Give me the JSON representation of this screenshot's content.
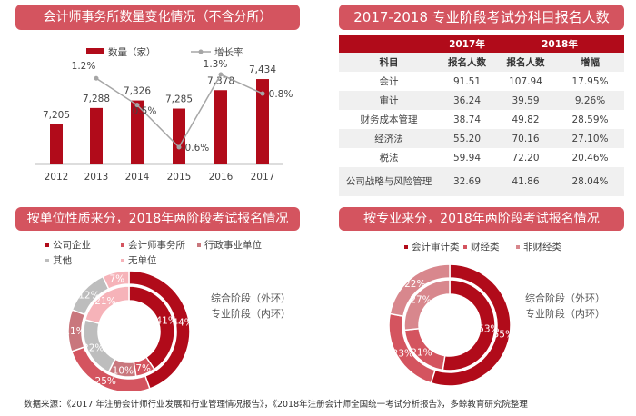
{
  "chart_data": [
    {
      "type": "bar",
      "title": "会计师事务所数量变化情况（不含分所）",
      "categories": [
        "2012",
        "2013",
        "2014",
        "2015",
        "2016",
        "2017"
      ],
      "series": [
        {
          "name": "数量（家）",
          "type": "bar",
          "values": [
            7205,
            7288,
            7326,
            7285,
            7378,
            7434
          ],
          "labels": [
            "7,205",
            "7,288",
            "7,326",
            "7,285",
            "7,378",
            "7,434"
          ],
          "color": "#b10b1a"
        },
        {
          "name": "增长率",
          "type": "line",
          "values": [
            null,
            1.2,
            0.5,
            -0.6,
            1.3,
            0.8
          ],
          "labels": [
            "",
            "1.2%",
            "0.5%",
            "-0.6%",
            "1.3%",
            "0.8%"
          ],
          "color": "#a6a6a6"
        }
      ],
      "legend": "top"
    },
    {
      "type": "table",
      "title": "2017-2018 专业阶段考试分科目报名人数",
      "group_headers": [
        "",
        "2017年",
        "2018年"
      ],
      "columns": [
        "科目",
        "报名人数",
        "报名人数",
        "增幅"
      ],
      "rows": [
        [
          "会计",
          "91.51",
          "107.94",
          "17.95%"
        ],
        [
          "审计",
          "36.24",
          "39.59",
          "9.26%"
        ],
        [
          "财务成本管理",
          "38.74",
          "49.82",
          "28.59%"
        ],
        [
          "经济法",
          "55.20",
          "70.16",
          "27.10%"
        ],
        [
          "税法",
          "59.94",
          "72.20",
          "20.46%"
        ],
        [
          "公司战略与风险管理",
          "32.69",
          "41.86",
          "28.04%"
        ]
      ]
    },
    {
      "type": "pie",
      "title": "按单位性质来分，2018年两阶段考试报名情况",
      "categories": [
        "公司企业",
        "会计师事务所",
        "行政事业单位",
        "其他",
        "无单位"
      ],
      "colors": [
        "#b10b1a",
        "#d4545f",
        "#c9777d",
        "#bdbdbd",
        "#f6b3b9"
      ],
      "outer": {
        "name": "综合阶段（外环）",
        "values": [
          44,
          25,
          11,
          12,
          7
        ]
      },
      "inner": {
        "name": "专业阶段（内环）",
        "values": [
          41,
          7,
          10,
          22,
          21
        ]
      }
    },
    {
      "type": "pie",
      "title": "按专业来分，2018年两阶段考试报名情况",
      "categories": [
        "会计审计类",
        "财经类",
        "非财经类"
      ],
      "colors": [
        "#b10b1a",
        "#d4545f",
        "#d8878d"
      ],
      "outer": {
        "name": "综合阶段（外环）",
        "values": [
          55,
          23,
          22
        ]
      },
      "inner": {
        "name": "专业阶段（内环）",
        "values": [
          53,
          21,
          27
        ]
      }
    }
  ],
  "footer": "数据来源：《2017 年注册会计师行业发展和行业管理情况报告》，《2018年注册会计师全国统一考试分析报告》，多鲸教育研究院整理"
}
